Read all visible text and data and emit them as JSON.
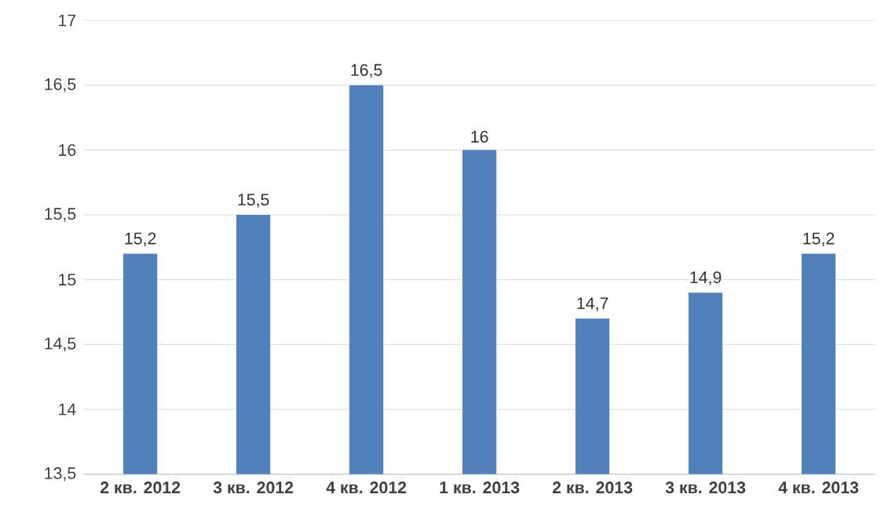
{
  "chart_data": {
    "type": "bar",
    "categories": [
      "2 кв. 2012",
      "3 кв. 2012",
      "4 кв. 2012",
      "1 кв. 2013",
      "2 кв. 2013",
      "3 кв. 2013",
      "4 кв. 2013"
    ],
    "values": [
      15.2,
      15.5,
      16.5,
      16,
      14.7,
      14.9,
      15.2
    ],
    "value_labels": [
      "15,2",
      "15,5",
      "16,5",
      "16",
      "14,7",
      "14,9",
      "15,2"
    ],
    "color": "#4f81bd",
    "ylim": [
      13.5,
      17
    ],
    "yticks": [
      {
        "value": 13.5,
        "label": "13,5"
      },
      14,
      {
        "value": 14.5,
        "label": "14,5"
      },
      15,
      {
        "value": 15.5,
        "label": "15,5"
      },
      16,
      {
        "value": 16.5,
        "label": "16,5"
      },
      17
    ],
    "grid": "y"
  }
}
